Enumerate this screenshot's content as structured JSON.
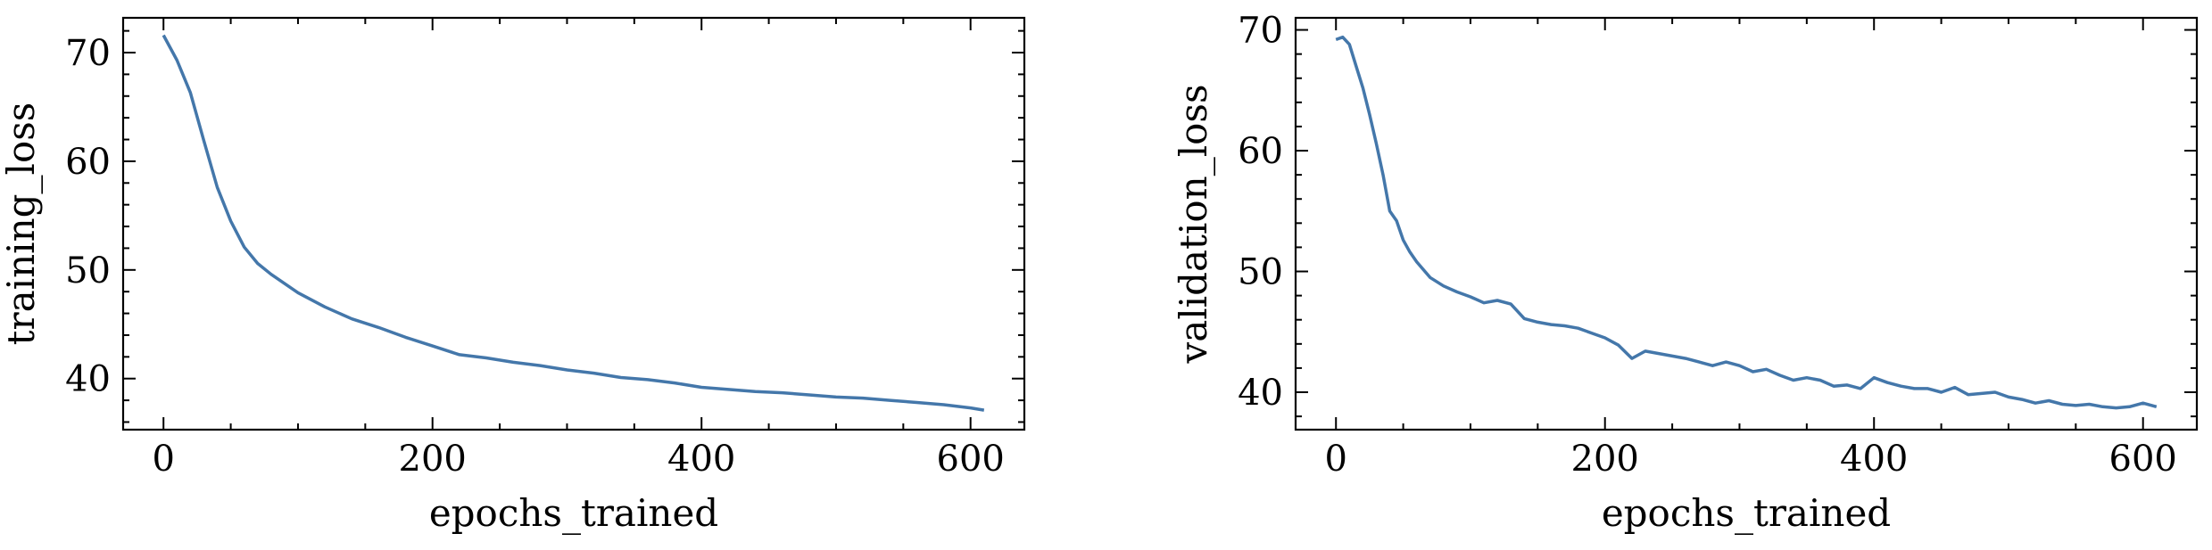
{
  "line_color": "#4477aa",
  "chart_data": [
    {
      "type": "line",
      "title": "",
      "xlabel": "epochs_trained",
      "ylabel": "training_loss",
      "xlim": [
        -30,
        640
      ],
      "ylim": [
        35.3,
        73.2
      ],
      "xticks": [
        0,
        200,
        400,
        600
      ],
      "xtick_labels": [
        "0",
        "200",
        "400",
        "600"
      ],
      "yticks": [
        40,
        50,
        60,
        70
      ],
      "ytick_labels": [
        "40",
        "50",
        "60",
        "70"
      ],
      "grid": false,
      "series": [
        {
          "x": [
            0,
            10,
            20,
            30,
            40,
            50,
            60,
            70,
            80,
            100,
            120,
            140,
            160,
            180,
            200,
            220,
            240,
            260,
            280,
            300,
            320,
            340,
            360,
            380,
            400,
            420,
            440,
            460,
            480,
            500,
            520,
            540,
            560,
            580,
            600,
            610
          ],
          "y": [
            71.6,
            69.3,
            66.3,
            61.9,
            57.6,
            54.5,
            52.1,
            50.6,
            49.6,
            47.9,
            46.6,
            45.5,
            44.7,
            43.8,
            43.0,
            42.2,
            41.9,
            41.5,
            41.2,
            40.8,
            40.5,
            40.1,
            39.9,
            39.6,
            39.2,
            39.0,
            38.8,
            38.7,
            38.5,
            38.3,
            38.2,
            38.0,
            37.8,
            37.6,
            37.3,
            37.1
          ]
        }
      ]
    },
    {
      "type": "line",
      "title": "",
      "xlabel": "epochs_trained",
      "ylabel": "validation_loss",
      "xlim": [
        -30,
        640
      ],
      "ylim": [
        36.9,
        71.0
      ],
      "xticks": [
        0,
        200,
        400,
        600
      ],
      "xtick_labels": [
        "0",
        "200",
        "400",
        "600"
      ],
      "yticks": [
        40,
        50,
        60,
        70
      ],
      "ytick_labels": [
        "40",
        "50",
        "60",
        "70"
      ],
      "grid": false,
      "series": [
        {
          "x": [
            0,
            5,
            10,
            15,
            20,
            25,
            30,
            35,
            40,
            45,
            50,
            55,
            60,
            70,
            80,
            90,
            100,
            110,
            120,
            130,
            140,
            150,
            160,
            170,
            180,
            190,
            200,
            210,
            220,
            230,
            240,
            250,
            260,
            270,
            280,
            290,
            300,
            310,
            320,
            330,
            340,
            350,
            360,
            370,
            380,
            390,
            400,
            410,
            420,
            430,
            440,
            450,
            460,
            470,
            480,
            490,
            500,
            510,
            520,
            530,
            540,
            550,
            560,
            570,
            580,
            590,
            600,
            610
          ],
          "y": [
            69.2,
            69.4,
            68.8,
            67.0,
            65.2,
            63.0,
            60.6,
            58.0,
            55.0,
            54.2,
            52.6,
            51.6,
            50.8,
            49.5,
            48.8,
            48.3,
            47.9,
            47.4,
            47.6,
            47.3,
            46.1,
            45.8,
            45.6,
            45.5,
            45.3,
            44.9,
            44.5,
            43.9,
            42.8,
            43.4,
            43.2,
            43.0,
            42.8,
            42.5,
            42.2,
            42.5,
            42.2,
            41.7,
            41.9,
            41.4,
            41.0,
            41.2,
            41.0,
            40.5,
            40.6,
            40.3,
            41.2,
            40.8,
            40.5,
            40.3,
            40.3,
            40.0,
            40.4,
            39.8,
            39.9,
            40.0,
            39.6,
            39.4,
            39.1,
            39.3,
            39.0,
            38.9,
            39.0,
            38.8,
            38.7,
            38.8,
            39.1,
            38.8
          ]
        }
      ]
    }
  ]
}
